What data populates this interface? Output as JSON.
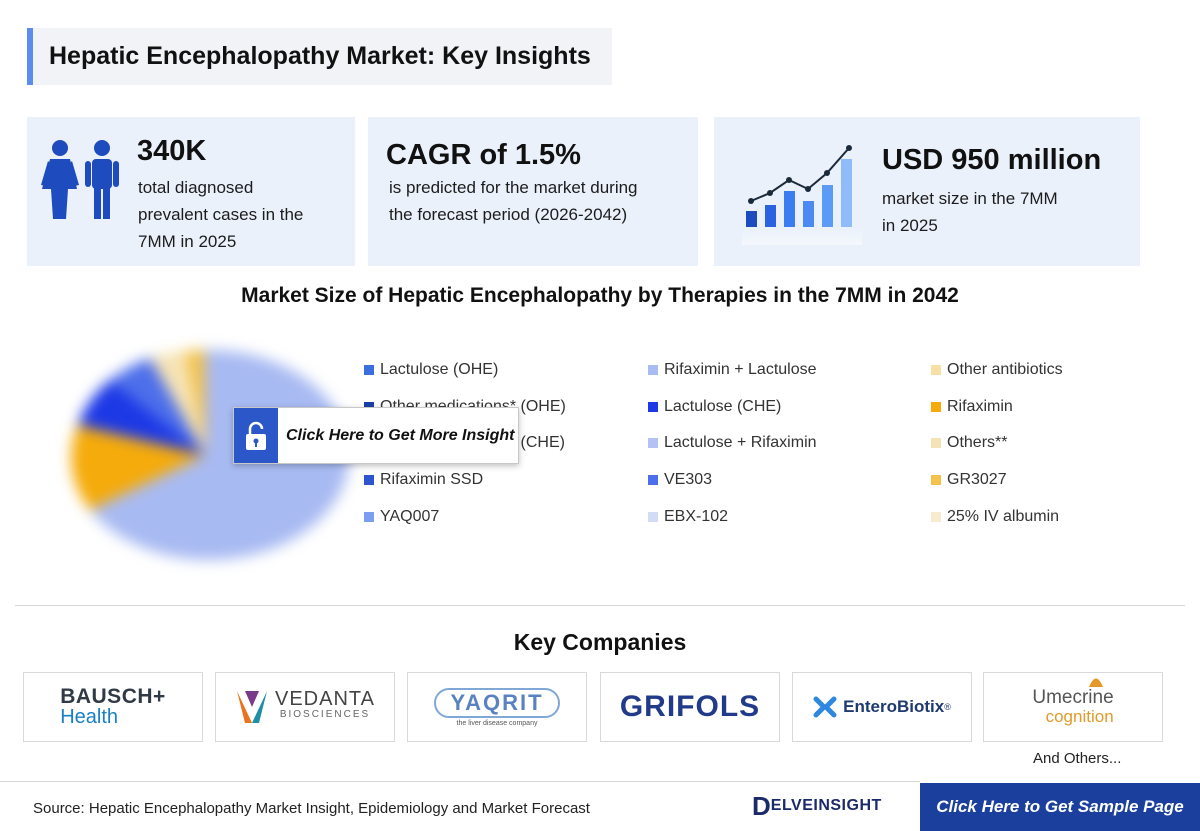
{
  "title": "Hepatic Encephalopathy Market: Key Insights",
  "stats": [
    {
      "value": "340K",
      "desc_lines": [
        "total diagnosed",
        "prevalent cases in the",
        "7MM in 2025"
      ],
      "icon": "people-icon"
    },
    {
      "value": "CAGR of 1.5%",
      "desc_lines": [
        "is predicted for the market during",
        "the forecast period (2026-2042)"
      ]
    },
    {
      "value": "USD 950 million",
      "desc_lines": [
        "market size in the 7MM",
        "in 2025"
      ],
      "icon": "bar-growth-icon"
    }
  ],
  "chart_data": {
    "type": "pie",
    "title": "Market Size of Hepatic Encephalopathy by Therapies in the 7MM in 2042",
    "series": [
      {
        "name": "Lactulose (OHE)",
        "color": "#3b6fe0"
      },
      {
        "name": "Other medications* (OHE)",
        "color": "#1c3fa8"
      },
      {
        "name": "Other medications* (CHE)",
        "color": "#2748b8"
      },
      {
        "name": "Rifaximin SSD",
        "color": "#2f54cf"
      },
      {
        "name": "YAQ007",
        "color": "#7b9ef0"
      },
      {
        "name": "Rifaximin + Lactulose",
        "color": "#a9bcf2"
      },
      {
        "name": "Lactulose (CHE)",
        "color": "#1d39e6"
      },
      {
        "name": "Lactulose + Rifaximin",
        "color": "#b3c2f2"
      },
      {
        "name": "VE303",
        "color": "#4d6fea"
      },
      {
        "name": "EBX-102",
        "color": "#d2dcf7"
      },
      {
        "name": "Other antibiotics",
        "color": "#f7dfa6"
      },
      {
        "name": "Rifaximin",
        "color": "#f5ab0b"
      },
      {
        "name": "Others**",
        "color": "#f6e3b5"
      },
      {
        "name": "GR3027",
        "color": "#f4c24a"
      },
      {
        "name": "25% IV albumin",
        "color": "#f8ecd0"
      }
    ],
    "legend_placement": "right"
  },
  "locked_overlay": "Click Here to Get More Insight",
  "companies": {
    "title": "Key Companies",
    "logos": [
      {
        "name": "BAUSCH",
        "sub": "Health",
        "plus": "+"
      },
      {
        "name": "VEDANTA",
        "sub": "BIOSCIENCES"
      },
      {
        "name": "YAQRIT",
        "sub": "the liver disease company"
      },
      {
        "name": "GRIFOLS"
      },
      {
        "name": "EnteroBiotix",
        "mark": "®"
      },
      {
        "name": "Umecrine",
        "sub": "cognition"
      }
    ],
    "and_others": "And Others..."
  },
  "footer": {
    "source": "Source: Hepatic Encephalopathy Market Insight, Epidemiology and Market Forecast",
    "brand": "ELVEINSIGHT",
    "brand_initial": "D",
    "sample_button": "Click Here to Get Sample Page"
  }
}
